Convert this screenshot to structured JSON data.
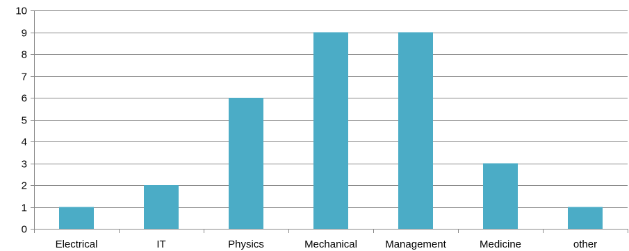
{
  "chart_data": {
    "type": "bar",
    "categories": [
      "Electrical",
      "IT",
      "Physics",
      "Mechanical",
      "Management",
      "Medicine",
      "other"
    ],
    "values": [
      1,
      2,
      6,
      9,
      9,
      3,
      1
    ],
    "title": "",
    "xlabel": "",
    "ylabel": "",
    "ylim": [
      0,
      10
    ],
    "yticks": [
      0,
      1,
      2,
      3,
      4,
      5,
      6,
      7,
      8,
      9,
      10
    ],
    "grid": true,
    "legend": "none",
    "colors": {
      "bar": "#4BACC6",
      "grid": "#888888",
      "axis": "#888888",
      "text": "#000000"
    }
  }
}
